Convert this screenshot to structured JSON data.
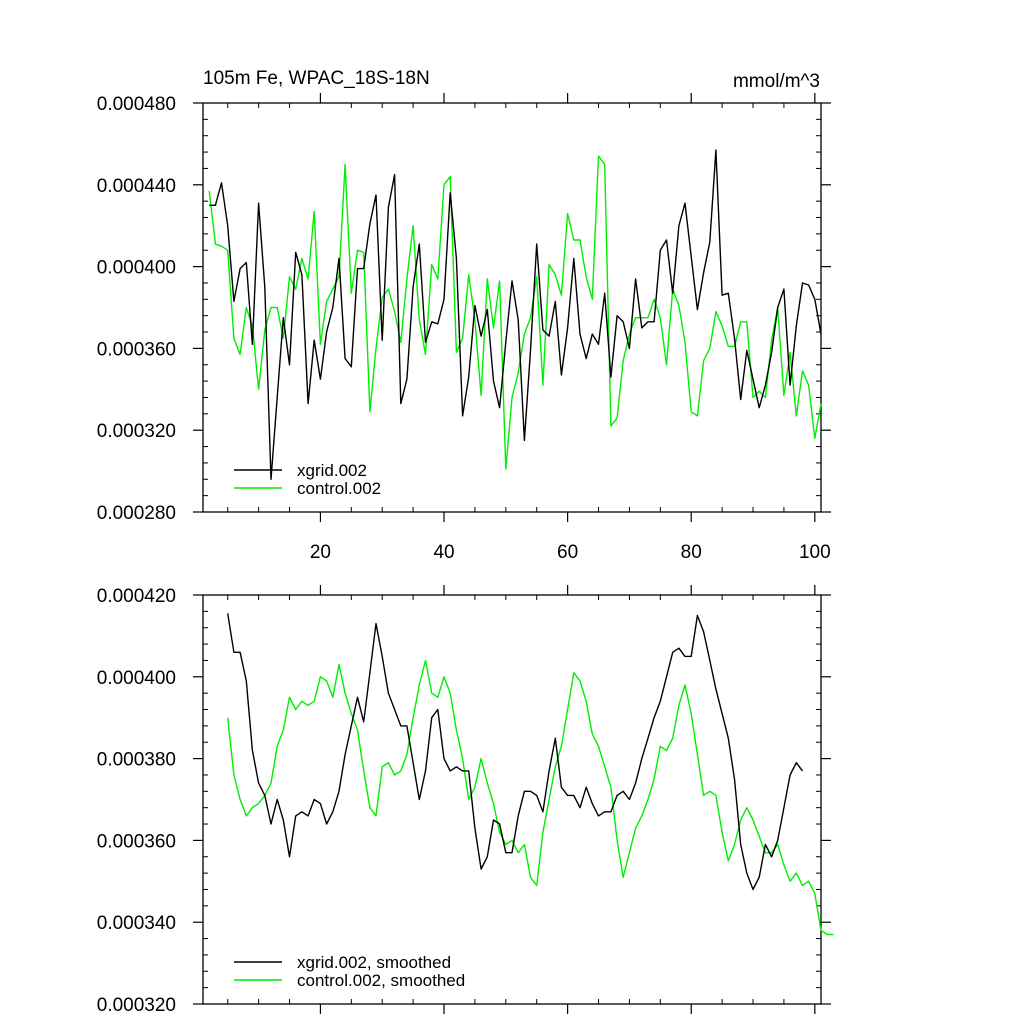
{
  "colors": {
    "xgrid": "#000000",
    "control": "#00ee00",
    "axis": "#000000",
    "background": "#ffffff"
  },
  "chart_data": [
    {
      "type": "line",
      "title": "105m Fe, WPAC_18S-18N",
      "units": "mmol/m^3",
      "xlim": [
        1,
        101
      ],
      "ylim": [
        0.00028,
        0.00048
      ],
      "xticks": [
        20,
        40,
        60,
        80,
        100
      ],
      "xtick_labels": [
        "20",
        "40",
        "60",
        "80",
        "100"
      ],
      "yticks": [
        0.00028,
        0.00032,
        0.00036,
        0.0004,
        0.00044,
        0.00048
      ],
      "ytick_labels": [
        "0.000280",
        "0.000320",
        "0.000360",
        "0.000400",
        "0.000440",
        "0.000480"
      ],
      "legend_position": "bottom-left",
      "series": [
        {
          "name": "xgrid.002",
          "color_key": "xgrid",
          "x_start": 2,
          "values": [
            0.00043,
            0.00043,
            0.000441,
            0.00042,
            0.000383,
            0.000399,
            0.000402,
            0.000362,
            0.000431,
            0.00039,
            0.000296,
            0.000336,
            0.000375,
            0.000352,
            0.000407,
            0.000396,
            0.000333,
            0.000364,
            0.000345,
            0.000368,
            0.00038,
            0.000404,
            0.000355,
            0.000351,
            0.000399,
            0.000399,
            0.000421,
            0.000435,
            0.000364,
            0.000429,
            0.000445,
            0.000333,
            0.000345,
            0.00039,
            0.000411,
            0.000363,
            0.000373,
            0.000372,
            0.000384,
            0.000436,
            0.000404,
            0.000327,
            0.000346,
            0.000381,
            0.000366,
            0.000379,
            0.000344,
            0.000331,
            0.000363,
            0.000393,
            0.000374,
            0.000315,
            0.000359,
            0.000411,
            0.000369,
            0.000366,
            0.000383,
            0.000347,
            0.00037,
            0.000404,
            0.000367,
            0.000355,
            0.000367,
            0.000362,
            0.000387,
            0.000346,
            0.000376,
            0.000373,
            0.00036,
            0.000394,
            0.00037,
            0.000373,
            0.000373,
            0.000408,
            0.000413,
            0.000387,
            0.00042,
            0.000431,
            0.000405,
            0.000379,
            0.000397,
            0.000412,
            0.000457,
            0.000386,
            0.000387,
            0.000365,
            0.000335,
            0.000359,
            0.000345,
            0.000331,
            0.000342,
            0.000358,
            0.00038,
            0.000389,
            0.000342,
            0.000371,
            0.000392,
            0.000391,
            0.000384,
            0.000367
          ]
        },
        {
          "name": "control.002",
          "color_key": "control",
          "x_start": 2,
          "values": [
            0.000437,
            0.000411,
            0.00041,
            0.000408,
            0.000365,
            0.000357,
            0.00038,
            0.000371,
            0.00034,
            0.000369,
            0.00038,
            0.00038,
            0.000365,
            0.000395,
            0.000389,
            0.000404,
            0.000394,
            0.000427,
            0.000362,
            0.000383,
            0.000389,
            0.000395,
            0.00045,
            0.000387,
            0.000408,
            0.000407,
            0.000329,
            0.00036,
            0.000385,
            0.000389,
            0.000378,
            0.000363,
            0.000394,
            0.00042,
            0.000374,
            0.000357,
            0.000401,
            0.000394,
            0.00044,
            0.000444,
            0.000358,
            0.000365,
            0.000396,
            0.000374,
            0.000337,
            0.000394,
            0.00037,
            0.000393,
            0.000301,
            0.000336,
            0.000348,
            0.000367,
            0.000375,
            0.000395,
            0.000342,
            0.000401,
            0.000396,
            0.000386,
            0.000426,
            0.000413,
            0.000413,
            0.000395,
            0.000384,
            0.000454,
            0.00045,
            0.000322,
            0.000326,
            0.000354,
            0.000367,
            0.000375,
            0.000375,
            0.000375,
            0.000384,
            0.000375,
            0.000352,
            0.000389,
            0.000381,
            0.000363,
            0.000329,
            0.000327,
            0.000354,
            0.00036,
            0.000378,
            0.000371,
            0.000361,
            0.000361,
            0.000373,
            0.000373,
            0.000336,
            0.000339,
            0.000336,
            0.000364,
            0.00038,
            0.000337,
            0.000358,
            0.000327,
            0.000349,
            0.000342,
            0.000316,
            0.000333
          ]
        }
      ]
    },
    {
      "type": "line",
      "title": "",
      "xlim": [
        1,
        101
      ],
      "ylim": [
        0.00032,
        0.00042
      ],
      "xticks": [
        20,
        40,
        60,
        80,
        100
      ],
      "xtick_labels": [
        "",
        "",
        "",
        "",
        ""
      ],
      "yticks": [
        0.00032,
        0.00034,
        0.00036,
        0.00038,
        0.0004,
        0.00042
      ],
      "ytick_labels": [
        "0.000320",
        "0.000340",
        "0.000360",
        "0.000380",
        "0.000400",
        "0.000420"
      ],
      "legend_position": "bottom-left",
      "series": [
        {
          "name": "xgrid.002, smoothed",
          "color_key": "xgrid",
          "x_start": 5,
          "values": [
            0.0004155,
            0.000406,
            0.000406,
            0.000399,
            0.000382,
            0.000374,
            0.000371,
            0.000364,
            0.00037,
            0.000365,
            0.000356,
            0.000366,
            0.000367,
            0.000366,
            0.00037,
            0.000369,
            0.000364,
            0.000367,
            0.000372,
            0.000381,
            0.000388,
            0.000395,
            0.000389,
            0.000401,
            0.000413,
            0.000405,
            0.000396,
            0.000392,
            0.000388,
            0.000388,
            0.000379,
            0.00037,
            0.000377,
            0.00039,
            0.000392,
            0.00038,
            0.000377,
            0.000378,
            0.000377,
            0.000377,
            0.000363,
            0.000353,
            0.000356,
            0.000365,
            0.000364,
            0.000357,
            0.000357,
            0.000366,
            0.000372,
            0.000372,
            0.000371,
            0.000367,
            0.000377,
            0.000385,
            0.000373,
            0.000371,
            0.000371,
            0.000368,
            0.000373,
            0.000369,
            0.000366,
            0.000367,
            0.000367,
            0.000371,
            0.000372,
            0.00037,
            0.000374,
            0.00038,
            0.000385,
            0.00039,
            0.000394,
            0.0004,
            0.000406,
            0.000407,
            0.000405,
            0.000405,
            0.000415,
            0.000411,
            0.000404,
            0.000397,
            0.000391,
            0.000385,
            0.000375,
            0.000359,
            0.000352,
            0.000348,
            0.000351,
            0.000359,
            0.000356,
            0.00036,
            0.000368,
            0.000376,
            0.000379,
            0.000377
          ]
        },
        {
          "name": "control.002, smoothed",
          "color_key": "control",
          "x_start": 5,
          "values": [
            0.00039,
            0.000376,
            0.00037,
            0.000366,
            0.000368,
            0.000369,
            0.000371,
            0.000374,
            0.000383,
            0.000387,
            0.000395,
            0.000392,
            0.000394,
            0.000393,
            0.000394,
            0.0004,
            0.000399,
            0.000395,
            0.000403,
            0.000396,
            0.000391,
            0.000387,
            0.000377,
            0.000368,
            0.000366,
            0.000378,
            0.000379,
            0.000376,
            0.000377,
            0.000381,
            0.00039,
            0.000398,
            0.000404,
            0.000396,
            0.000395,
            0.0004,
            0.000396,
            0.000387,
            0.00038,
            0.00037,
            0.000373,
            0.00038,
            0.000374,
            0.000369,
            0.000362,
            0.000359,
            0.00036,
            0.000357,
            0.000359,
            0.000351,
            0.000349,
            0.000362,
            0.00037,
            0.000378,
            0.000383,
            0.000392,
            0.000401,
            0.000399,
            0.000394,
            0.000386,
            0.000383,
            0.000378,
            0.000373,
            0.00036,
            0.000351,
            0.000357,
            0.000363,
            0.000366,
            0.00037,
            0.000375,
            0.000383,
            0.000382,
            0.000385,
            0.000393,
            0.000398,
            0.000391,
            0.000381,
            0.000371,
            0.000372,
            0.000371,
            0.000362,
            0.000355,
            0.000359,
            0.000365,
            0.000368,
            0.000365,
            0.000361,
            0.000357,
            0.000357,
            0.000359,
            0.000354,
            0.00035,
            0.000352,
            0.000349,
            0.00035,
            0.000347,
            0.000338,
            0.000337,
            0.000337
          ]
        }
      ]
    }
  ]
}
